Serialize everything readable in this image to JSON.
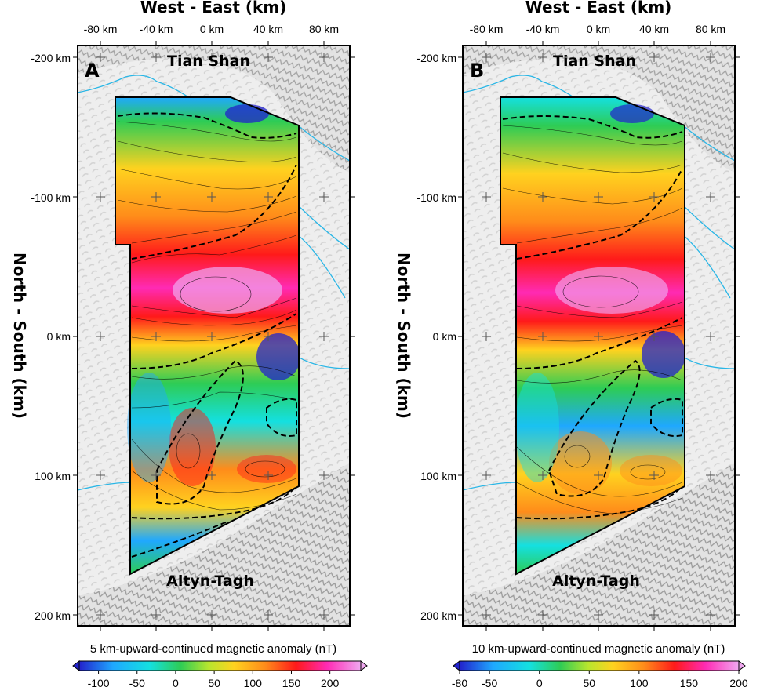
{
  "panels": [
    {
      "id": "A",
      "letter": "A",
      "x_axis_title": "West - East (km)",
      "y_axis_title": "North - South (km)",
      "x_ticks": [
        "-80 km",
        "-40 km",
        "0 km",
        "40 km",
        "80 km"
      ],
      "y_ticks": [
        "-200 km",
        "-100 km",
        "0 km",
        "100 km",
        "200 km"
      ],
      "label_north": "Tian Shan",
      "label_south": "Altyn-Tagh",
      "colorbar_title": "5 km-upward-continued magnetic anomaly (nT)",
      "colorbar_ticks": [
        "-100",
        "-50",
        "0",
        "50",
        "100",
        "150",
        "200"
      ],
      "colorbar_range": [
        -125,
        240
      ]
    },
    {
      "id": "B",
      "letter": "B",
      "x_axis_title": "West - East (km)",
      "y_axis_title": "North - South (km)",
      "x_ticks": [
        "-80 km",
        "-40 km",
        "0 km",
        "40 km",
        "80 km"
      ],
      "y_ticks": [
        "-200 km",
        "-100 km",
        "0 km",
        "100 km",
        "200 km"
      ],
      "label_north": "Tian Shan",
      "label_south": "Altyn-Tagh",
      "colorbar_title": "10 km-upward-continued magnetic anomaly (nT)",
      "colorbar_ticks": [
        "-80",
        "-50",
        "0",
        "50",
        "100",
        "150",
        "200"
      ],
      "colorbar_range": [
        -80,
        200
      ]
    }
  ],
  "colors": {
    "river": "#29b6e6",
    "contour_dashed": "#000000",
    "survey_outline": "#000000",
    "colorscale": [
      "#2222cc",
      "#1fa8ff",
      "#14e0e0",
      "#2ecc55",
      "#b8e62e",
      "#ffd21f",
      "#ff8c1a",
      "#ff1a1a",
      "#ff2ab4",
      "#f0a8f0"
    ]
  }
}
